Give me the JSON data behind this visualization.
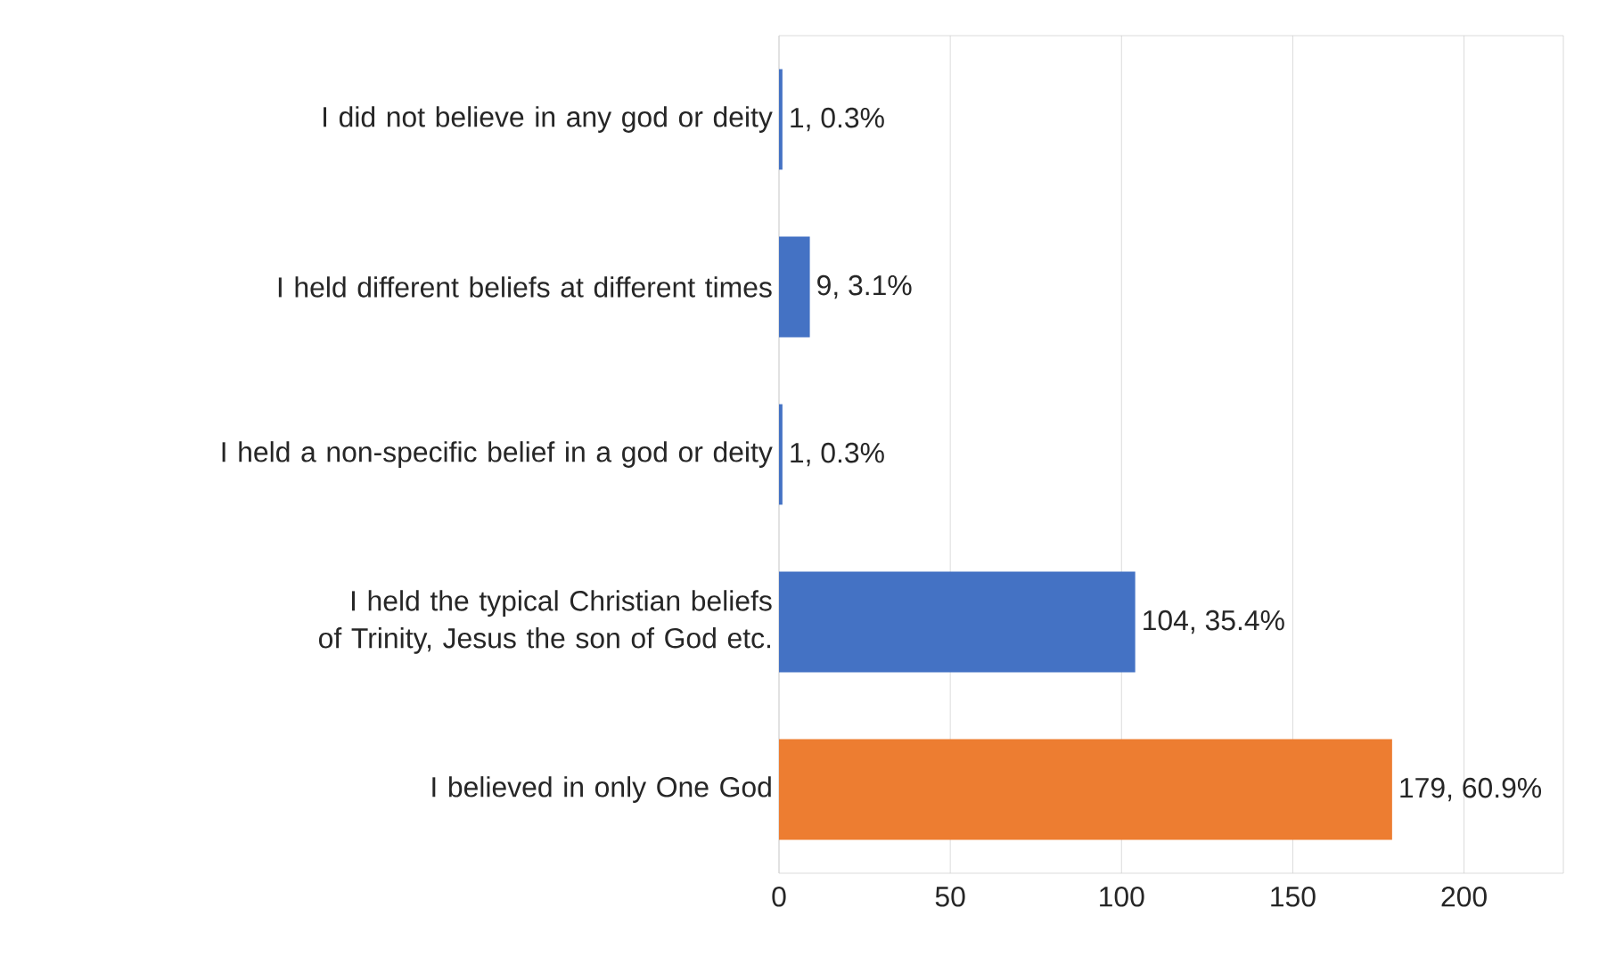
{
  "chart_data": {
    "type": "bar",
    "orientation": "horizontal",
    "categories": [
      "I did not believe in any god or deity",
      "I held different beliefs at different times",
      "I held a non-specific belief in a god or deity",
      "I held the typical Christian beliefs of Trinity, Jesus the son of God etc.",
      "I believed in only One God"
    ],
    "values": [
      1,
      9,
      1,
      104,
      179
    ],
    "colors": [
      "#4472c4",
      "#4472c4",
      "#4472c4",
      "#4472c4",
      "#ed7d31"
    ],
    "value_labels": [
      "1, 0.3%",
      "9, 3.1%",
      "1, 0.3%",
      "104, 35.4%",
      "179, 60.9%"
    ],
    "xlim": [
      0,
      229
    ],
    "xticks": [
      0,
      50,
      100,
      150,
      200
    ],
    "grid": "x"
  }
}
